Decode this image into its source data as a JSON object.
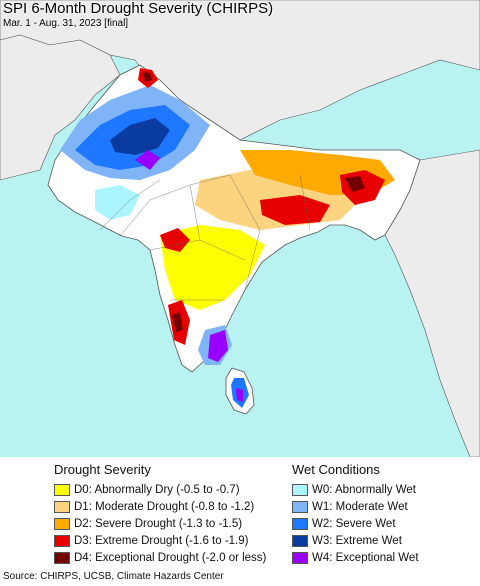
{
  "header": {
    "title": "SPI 6-Month Drought Severity (CHIRPS)",
    "subtitle": "Mar. 1 - Aug. 31, 2023 [final]"
  },
  "legend": {
    "drought": {
      "heading": "Drought Severity",
      "items": [
        {
          "label": "D0: Abnormally Dry (-0.5 to -0.7)",
          "color": "#ffff00"
        },
        {
          "label": "D1: Moderate Drought (-0.8 to -1.2)",
          "color": "#fcd37f"
        },
        {
          "label": "D2: Severe Drought (-1.3 to -1.5)",
          "color": "#ffaa00"
        },
        {
          "label": "D3: Extreme Drought (-1.6 to -1.9)",
          "color": "#e60000"
        },
        {
          "label": "D4: Exceptional Drought (-2.0 or less)",
          "color": "#730000"
        }
      ]
    },
    "wet": {
      "heading": "Wet Conditions",
      "items": [
        {
          "label": "W0: Abnormally Wet",
          "color": "#aaf5ff"
        },
        {
          "label": "W1: Moderate Wet",
          "color": "#7fb4f7"
        },
        {
          "label": "W2: Severe Wet",
          "color": "#1e78ff"
        },
        {
          "label": "W3: Extreme Wet",
          "color": "#0a3ca0"
        },
        {
          "label": "W4: Exceptional Wet",
          "color": "#9900ff"
        }
      ]
    }
  },
  "footer": {
    "source": "Source: CHIRPS, UCSB, Climate Hazards Center"
  }
}
